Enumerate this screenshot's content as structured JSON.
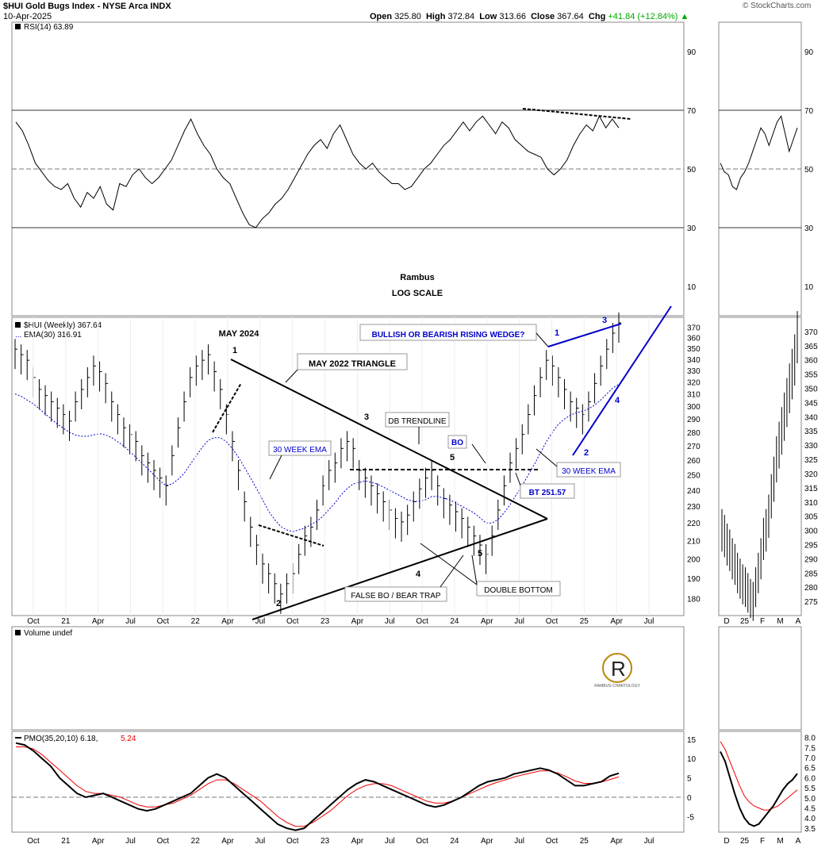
{
  "header": {
    "symbol_title": "$HUI Gold Bugs Index - NYSE Arca INDX",
    "date": "10-Apr-2025",
    "open_label": "Open",
    "open": "325.80",
    "high_label": "High",
    "high": "372.84",
    "low_label": "Low",
    "low": "313.66",
    "close_label": "Close",
    "close": "367.64",
    "chg_label": "Chg",
    "chg": "+41.84 (+12.84%)",
    "watermark": "© StockCharts.com"
  },
  "colors": {
    "bull": "#0a0",
    "blue": "#00c",
    "ema": "#00c",
    "signal": "#e00",
    "black": "#000"
  },
  "chart_data": [
    {
      "type": "line",
      "panel": "RSI",
      "legend": "RSI(14) 63.89",
      "y_ticks": [
        90,
        70,
        50,
        30,
        10
      ],
      "ylim": [
        0,
        100
      ],
      "reference_lines": [
        70,
        50,
        30
      ],
      "series": [
        {
          "name": "RSI(14)",
          "values": [
            66,
            63,
            58,
            52,
            49,
            46,
            44,
            43,
            45,
            40,
            37,
            42,
            40,
            44,
            38,
            36,
            45,
            44,
            48,
            50,
            47,
            45,
            47,
            50,
            53,
            58,
            63,
            67,
            62,
            58,
            55,
            50,
            47,
            45,
            40,
            35,
            31,
            30,
            33,
            35,
            38,
            40,
            43,
            47,
            51,
            55,
            58,
            60,
            57,
            62,
            65,
            60,
            55,
            52,
            50,
            52,
            49,
            47,
            45,
            45,
            43,
            44,
            47,
            50,
            52,
            55,
            58,
            60,
            63,
            66,
            63,
            66,
            68,
            65,
            62,
            66,
            64,
            60,
            58,
            56,
            55,
            54,
            50,
            48,
            50,
            53,
            58,
            62,
            65,
            63,
            68,
            64,
            67,
            64
          ]
        }
      ]
    },
    {
      "type": "bar",
      "panel": "Price",
      "legend": "$HUI (Weekly) 367.64",
      "ema_legend": "EMA(30) 316.91",
      "scale": "log",
      "y_ticks": [
        370,
        360,
        350,
        340,
        330,
        320,
        310,
        300,
        290,
        280,
        270,
        260,
        250,
        240,
        230,
        220,
        210,
        200,
        190,
        180
      ],
      "ylim": [
        172,
        380
      ],
      "x_labels": [
        "Oct",
        "21",
        "Apr",
        "Jul",
        "Oct",
        "22",
        "Apr",
        "Jul",
        "Oct",
        "23",
        "Apr",
        "Jul",
        "Oct",
        "24",
        "Apr",
        "Jul",
        "Oct",
        "25",
        "Apr",
        "Jul"
      ],
      "series": [
        {
          "name": "$HUI",
          "values": [
            345,
            340,
            335,
            320,
            310,
            305,
            300,
            295,
            290,
            285,
            300,
            310,
            320,
            330,
            325,
            315,
            300,
            290,
            280,
            275,
            270,
            260,
            255,
            250,
            245,
            240,
            260,
            280,
            300,
            320,
            330,
            335,
            340,
            325,
            310,
            290,
            270,
            250,
            230,
            215,
            205,
            195,
            190,
            185,
            180,
            185,
            190,
            200,
            210,
            215,
            225,
            240,
            250,
            255,
            265,
            270,
            265,
            250,
            245,
            240,
            235,
            230,
            225,
            220,
            218,
            222,
            230,
            238,
            245,
            250,
            240,
            232,
            228,
            224,
            220,
            215,
            210,
            205,
            200,
            210,
            225,
            240,
            255,
            265,
            275,
            290,
            305,
            320,
            335,
            330,
            320,
            310,
            300,
            295,
            290,
            300,
            315,
            330,
            345,
            360,
            370
          ]
        },
        {
          "name": "EMA(30)",
          "values": [
            310,
            308,
            305,
            302,
            298,
            294,
            290,
            286,
            283,
            280,
            278,
            277,
            277,
            278,
            279,
            278,
            276,
            273,
            270,
            266,
            262,
            258,
            254,
            250,
            246,
            243,
            244,
            247,
            251,
            257,
            263,
            269,
            274,
            276,
            276,
            273,
            268,
            262,
            255,
            248,
            241,
            234,
            227,
            222,
            218,
            216,
            215,
            216,
            217,
            219,
            221,
            224,
            228,
            232,
            237,
            241,
            244,
            245,
            246,
            245,
            244,
            242,
            240,
            238,
            236,
            234,
            233,
            233,
            234,
            236,
            236,
            235,
            234,
            232,
            230,
            228,
            226,
            223,
            220,
            220,
            222,
            226,
            231,
            237,
            243,
            250,
            257,
            265,
            273,
            280,
            286,
            290,
            293,
            295,
            296,
            298,
            301,
            305,
            310,
            315,
            318
          ]
        }
      ]
    },
    {
      "type": "bar",
      "panel": "Volume",
      "legend": "Volume undef",
      "series": []
    },
    {
      "type": "line",
      "panel": "PMO",
      "legend": "PMO(35,20,10) 6.18,",
      "signal_value": "5.24",
      "y_ticks": [
        15,
        10,
        5,
        0,
        -5
      ],
      "ylim": [
        -9,
        17
      ],
      "series": [
        {
          "name": "PMO",
          "values": [
            14,
            13.5,
            12,
            10,
            8,
            5,
            3,
            1,
            0,
            0.5,
            1,
            0,
            -1,
            -2,
            -3,
            -3.5,
            -3,
            -2,
            -1,
            0,
            1,
            3,
            5,
            6,
            5,
            3,
            1,
            -1,
            -3,
            -5,
            -7,
            -8,
            -8.5,
            -8,
            -6,
            -4,
            -2,
            0,
            2,
            3.5,
            4.5,
            4,
            3,
            2,
            1,
            0,
            -1,
            -2,
            -2.5,
            -2,
            -1,
            0,
            1.5,
            3,
            4,
            4.5,
            5,
            6,
            6.5,
            7,
            7.5,
            7,
            6,
            4.5,
            3,
            3,
            3.5,
            4,
            5.5,
            6.2
          ]
        },
        {
          "name": "Signal",
          "values": [
            13,
            13,
            12.5,
            11,
            9,
            7,
            5,
            3,
            1.5,
            1,
            1,
            0.5,
            0,
            -1,
            -2,
            -2.5,
            -2.5,
            -2,
            -1.5,
            -0.5,
            0.5,
            2,
            3.5,
            4.5,
            4.5,
            3.5,
            2,
            0.5,
            -1,
            -3,
            -5,
            -6.5,
            -7.5,
            -7.5,
            -6.5,
            -5,
            -3.5,
            -1.5,
            0.5,
            2,
            3,
            3.5,
            3.5,
            3,
            2,
            1,
            0,
            -1,
            -1.5,
            -1.5,
            -1,
            0,
            1,
            2,
            3,
            3.8,
            4.5,
            5.2,
            5.8,
            6.3,
            6.8,
            6.8,
            6.3,
            5.3,
            4.2,
            3.6,
            3.6,
            3.9,
            4.6,
            5.24
          ]
        }
      ]
    },
    {
      "type": "bar",
      "panel": "Zoom price",
      "y_ticks": [
        370,
        365,
        360,
        355,
        350,
        345,
        340,
        335,
        330,
        325,
        320,
        315,
        310,
        305,
        300,
        295,
        290,
        285,
        280,
        275
      ],
      "x_labels": [
        "D",
        "25",
        "F",
        "M",
        "A"
      ],
      "series": [
        {
          "name": "$HUI",
          "values": [
            300,
            298,
            295,
            293,
            290,
            288,
            285,
            283,
            281,
            280,
            278,
            276,
            275,
            280,
            285,
            290,
            297,
            300,
            305,
            312,
            318,
            325,
            330,
            335,
            340,
            345,
            350,
            355,
            360,
            368
          ]
        }
      ]
    },
    {
      "type": "line",
      "panel": "Zoom RSI",
      "y_ticks": [
        90,
        70,
        50,
        30,
        10
      ],
      "series": [
        {
          "name": "RSI",
          "values": [
            52,
            49,
            48,
            44,
            43,
            47,
            49,
            52,
            56,
            60,
            64,
            62,
            58,
            62,
            66,
            68,
            62,
            56,
            60,
            64
          ]
        }
      ]
    },
    {
      "type": "line",
      "panel": "Zoom PMO",
      "y_ticks": [
        8.0,
        7.5,
        7.0,
        6.5,
        6.0,
        5.5,
        5.0,
        4.5,
        4.0,
        3.5
      ],
      "series": [
        {
          "name": "PMO",
          "values": [
            7.3,
            6.8,
            6.0,
            5.2,
            4.5,
            4.0,
            3.7,
            3.6,
            3.7,
            4.0,
            4.3,
            4.6,
            5.0,
            5.4,
            5.7,
            5.9,
            6.2
          ]
        },
        {
          "name": "Signal",
          "values": [
            7.8,
            7.4,
            6.8,
            6.2,
            5.6,
            5.1,
            4.8,
            4.6,
            4.5,
            4.4,
            4.4,
            4.5,
            4.6,
            4.8,
            5.0,
            5.2,
            5.4
          ]
        }
      ]
    }
  ],
  "annotations": {
    "rambus": "Rambus",
    "log_scale": "LOG SCALE",
    "may_2024": "MAY 2024",
    "may_2022_triangle": "MAY 2022 TRIANGLE",
    "db_trendline": "DB TRENDLINE",
    "ema_label_left": "30 WEEK EMA",
    "ema_label_right": "30 WEEK EMA",
    "bo": "BO",
    "bt": "BT 251.57",
    "wedge_question": "BULLISH OR BEARISH RISING WEDGE?",
    "false_bo": "FALSE BO / BEAR TRAP",
    "double_bottom": "DOUBLE BOTTOM",
    "logo_sub": "RAMBUS CHARTOLOGY",
    "n1": "1",
    "n2": "2",
    "n3": "3",
    "n4": "4",
    "n5": "5"
  }
}
